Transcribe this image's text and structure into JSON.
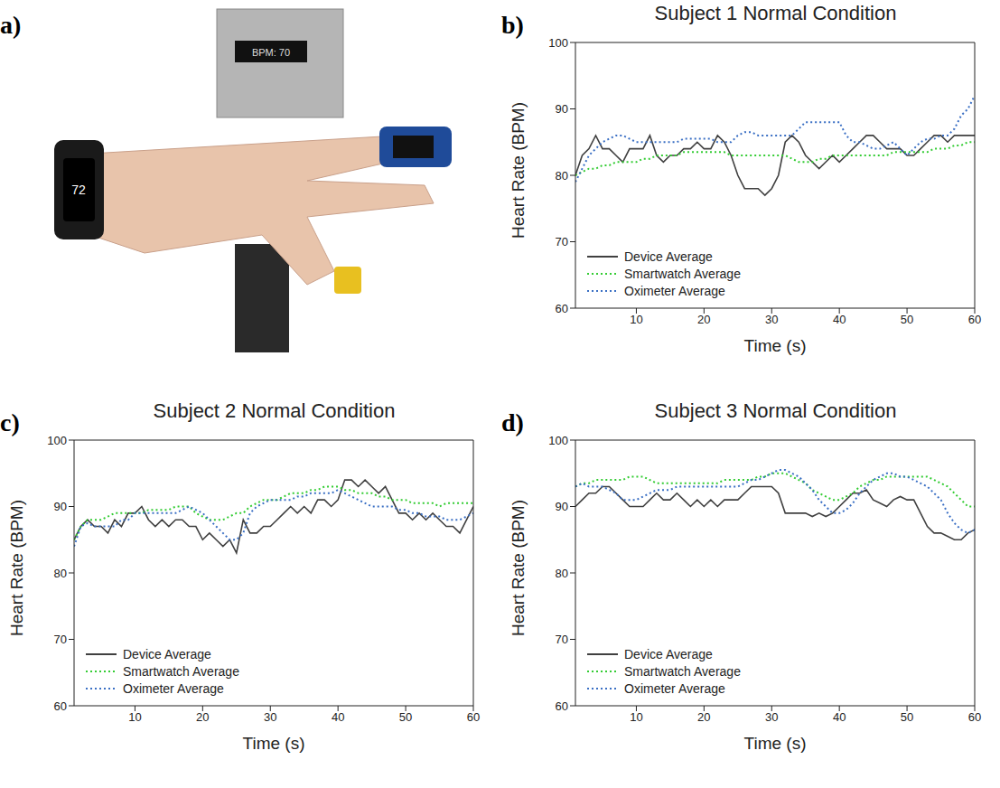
{
  "panel_a": {
    "panel": "a)",
    "texts": [
      "BPM: 70",
      "72"
    ]
  },
  "chart_data": [
    {
      "panel": "b)",
      "type": "line",
      "title": "Subject 1 Normal Condition",
      "xlabel": "Time (s)",
      "ylabel": "Heart Rate (BPM)",
      "legend": "lower left",
      "xlim": [
        1,
        60
      ],
      "xticks": [
        10,
        20,
        30,
        40,
        50,
        60
      ],
      "ylim": [
        60,
        100
      ],
      "yticks": [
        60,
        70,
        80,
        90,
        100
      ],
      "x": [
        1,
        2,
        3,
        4,
        5,
        6,
        7,
        8,
        9,
        10,
        11,
        12,
        13,
        14,
        15,
        16,
        17,
        18,
        19,
        20,
        21,
        22,
        23,
        24,
        25,
        26,
        27,
        28,
        29,
        30,
        31,
        32,
        33,
        34,
        35,
        36,
        37,
        38,
        39,
        40,
        41,
        42,
        43,
        44,
        45,
        46,
        47,
        48,
        49,
        50,
        51,
        52,
        53,
        54,
        55,
        56,
        57,
        58,
        59,
        60
      ],
      "series": [
        {
          "name": "Device Average",
          "color": "#404040",
          "line_style": "solid",
          "values": [
            80,
            83,
            84,
            86,
            84,
            84,
            83,
            82,
            84,
            84,
            84,
            86,
            83,
            82,
            83,
            83,
            84,
            84,
            85,
            84,
            84,
            86,
            85,
            83,
            80,
            78,
            78,
            78,
            77,
            78,
            80,
            85,
            86,
            85,
            83,
            82,
            81,
            82,
            83,
            82,
            83,
            84,
            85,
            86,
            86,
            85,
            84,
            84,
            84,
            83,
            83,
            84,
            85,
            86,
            86,
            85,
            86,
            86,
            86,
            86
          ]
        },
        {
          "name": "Smartwatch Average",
          "color": "#33cc33",
          "line_style": "dotted",
          "values": [
            80,
            80.5,
            81,
            81,
            81.5,
            81.5,
            82,
            82,
            82,
            82,
            82.5,
            82.5,
            83,
            83,
            83,
            83,
            83.5,
            83.5,
            83.5,
            83.5,
            83.5,
            83.5,
            83.5,
            83,
            83,
            83,
            83,
            83,
            83,
            83,
            83,
            83,
            82.5,
            82,
            82,
            82,
            82.5,
            82.5,
            83,
            83,
            83,
            83,
            83,
            83,
            83,
            83,
            83,
            83.5,
            83.5,
            83.5,
            83.5,
            83.5,
            83.5,
            84,
            84,
            84,
            84.5,
            84.5,
            85,
            85
          ]
        },
        {
          "name": "Oximeter Average",
          "color": "#3a6fc4",
          "line_style": "dotted",
          "values": [
            79,
            81,
            83,
            84,
            85,
            85.5,
            86,
            86,
            85.5,
            85,
            85,
            85,
            85,
            85,
            85,
            85,
            85.5,
            85.5,
            85.5,
            85.5,
            85.5,
            85,
            85,
            85,
            86,
            86.5,
            86.5,
            86,
            86,
            86,
            86,
            86,
            86,
            87,
            88,
            88,
            88,
            88,
            88,
            88,
            86,
            85,
            85,
            84.5,
            84,
            84,
            84.5,
            85,
            84,
            83,
            84,
            85,
            85.5,
            85.5,
            86,
            86,
            87,
            89,
            90,
            92
          ]
        }
      ]
    },
    {
      "panel": "c)",
      "type": "line",
      "title": "Subject 2 Normal Condition",
      "xlabel": "Time (s)",
      "ylabel": "Heart Rate (BPM)",
      "legend": "lower left",
      "xlim": [
        1,
        60
      ],
      "xticks": [
        10,
        20,
        30,
        40,
        50,
        60
      ],
      "ylim": [
        60,
        100
      ],
      "yticks": [
        60,
        70,
        80,
        90,
        100
      ],
      "x": [
        1,
        2,
        3,
        4,
        5,
        6,
        7,
        8,
        9,
        10,
        11,
        12,
        13,
        14,
        15,
        16,
        17,
        18,
        19,
        20,
        21,
        22,
        23,
        24,
        25,
        26,
        27,
        28,
        29,
        30,
        31,
        32,
        33,
        34,
        35,
        36,
        37,
        38,
        39,
        40,
        41,
        42,
        43,
        44,
        45,
        46,
        47,
        48,
        49,
        50,
        51,
        52,
        53,
        54,
        55,
        56,
        57,
        58,
        59,
        60
      ],
      "series": [
        {
          "name": "Device Average",
          "color": "#404040",
          "line_style": "solid",
          "values": [
            85,
            87,
            88,
            87,
            87,
            86,
            88,
            87,
            89,
            89,
            90,
            88,
            87,
            88,
            87,
            88,
            88,
            87,
            87,
            85,
            86,
            85,
            84,
            85,
            83,
            88,
            86,
            86,
            87,
            87,
            88,
            89,
            90,
            89,
            90,
            89,
            91,
            91,
            90,
            91,
            94,
            94,
            93,
            94,
            93,
            92,
            93,
            91,
            89,
            89,
            88,
            89,
            88,
            89,
            88,
            87,
            87,
            86,
            88,
            90
          ]
        },
        {
          "name": "Smartwatch Average",
          "color": "#33cc33",
          "line_style": "dotted",
          "values": [
            85,
            87,
            88,
            88,
            88,
            88.5,
            89,
            89,
            89,
            89,
            89,
            89.5,
            89.5,
            89.5,
            89.5,
            90,
            90,
            90,
            89,
            88.5,
            88,
            88,
            88,
            88.5,
            89,
            89,
            90,
            90.5,
            91,
            91,
            91,
            91.5,
            92,
            92,
            92,
            92.5,
            92.5,
            93,
            93,
            93,
            92.5,
            92.5,
            92,
            92,
            92,
            91.5,
            91.5,
            91,
            91,
            91,
            90.5,
            90.5,
            90.5,
            90.5,
            90,
            90.5,
            90.5,
            90.5,
            90.5,
            90.5
          ]
        },
        {
          "name": "Oximeter Average",
          "color": "#3a6fc4",
          "line_style": "dotted",
          "values": [
            84,
            87,
            87.5,
            87,
            87,
            87,
            87,
            88,
            88,
            89,
            89,
            89,
            89,
            89,
            89,
            89,
            89.5,
            90,
            89.5,
            89,
            88,
            87,
            86,
            85,
            85,
            86,
            89,
            90,
            90.5,
            91,
            91,
            91,
            91,
            91.5,
            91.5,
            92,
            92,
            92,
            92,
            92.5,
            92,
            91.5,
            91,
            90.5,
            90,
            90,
            90,
            90,
            89.5,
            89.5,
            89,
            89,
            88.5,
            88.5,
            88.5,
            88,
            88,
            88,
            88.5,
            89
          ]
        }
      ]
    },
    {
      "panel": "d)",
      "type": "line",
      "title": "Subject 3 Normal Condition",
      "xlabel": "Time (s)",
      "ylabel": "Heart Rate (BPM)",
      "legend": "lower left",
      "xlim": [
        1,
        60
      ],
      "xticks": [
        10,
        20,
        30,
        40,
        50,
        60
      ],
      "ylim": [
        60,
        100
      ],
      "yticks": [
        60,
        70,
        80,
        90,
        100
      ],
      "x": [
        1,
        2,
        3,
        4,
        5,
        6,
        7,
        8,
        9,
        10,
        11,
        12,
        13,
        14,
        15,
        16,
        17,
        18,
        19,
        20,
        21,
        22,
        23,
        24,
        25,
        26,
        27,
        28,
        29,
        30,
        31,
        32,
        33,
        34,
        35,
        36,
        37,
        38,
        39,
        40,
        41,
        42,
        43,
        44,
        45,
        46,
        47,
        48,
        49,
        50,
        51,
        52,
        53,
        54,
        55,
        56,
        57,
        58,
        59,
        60
      ],
      "series": [
        {
          "name": "Device Average",
          "color": "#404040",
          "line_style": "solid",
          "values": [
            90,
            91,
            92,
            92,
            93,
            93,
            92,
            91,
            90,
            90,
            90,
            91,
            92,
            91,
            91,
            92,
            91,
            90,
            91,
            90,
            91,
            90,
            91,
            91,
            91,
            92,
            93,
            93,
            93,
            93,
            92,
            89,
            89,
            89,
            89,
            88.5,
            89,
            88.5,
            89,
            90,
            91,
            92,
            92,
            92.5,
            91,
            90.5,
            90,
            91,
            91.5,
            91,
            91,
            89,
            87,
            86,
            86,
            85.5,
            85,
            85,
            86,
            86.5
          ]
        },
        {
          "name": "Smartwatch Average",
          "color": "#33cc33",
          "line_style": "dotted",
          "values": [
            93,
            93.5,
            93.5,
            94,
            94,
            94,
            94,
            94,
            94.5,
            94.5,
            94.5,
            94,
            93.5,
            93.5,
            93.5,
            93.5,
            93.5,
            93.5,
            93.5,
            93.5,
            93.5,
            93.5,
            94,
            94,
            94,
            94,
            94,
            94.5,
            94.5,
            95,
            95,
            95,
            94.5,
            94,
            93.5,
            92.5,
            92,
            91.5,
            91,
            91,
            91.5,
            92,
            93,
            93.5,
            94,
            94,
            94.5,
            94.5,
            94.5,
            94.5,
            94.5,
            94.5,
            94.5,
            94,
            93.5,
            93,
            92,
            91,
            90,
            90
          ]
        },
        {
          "name": "Oximeter Average",
          "color": "#3a6fc4",
          "line_style": "dotted",
          "values": [
            93,
            93.5,
            93,
            93,
            93,
            92.5,
            92,
            91,
            91,
            91,
            91.5,
            92,
            92.5,
            92.5,
            92.5,
            93,
            93,
            93,
            93,
            93,
            93,
            93,
            93,
            93,
            93,
            93.5,
            94,
            94,
            94.5,
            95,
            95.5,
            95.5,
            95,
            94.5,
            93.5,
            92.5,
            91,
            90,
            89,
            89,
            89.5,
            90.5,
            92,
            93,
            94,
            94.5,
            95,
            95,
            94.5,
            94.5,
            94,
            93.5,
            93,
            92,
            91,
            89,
            87.5,
            86.5,
            86,
            86.5
          ]
        }
      ]
    }
  ]
}
